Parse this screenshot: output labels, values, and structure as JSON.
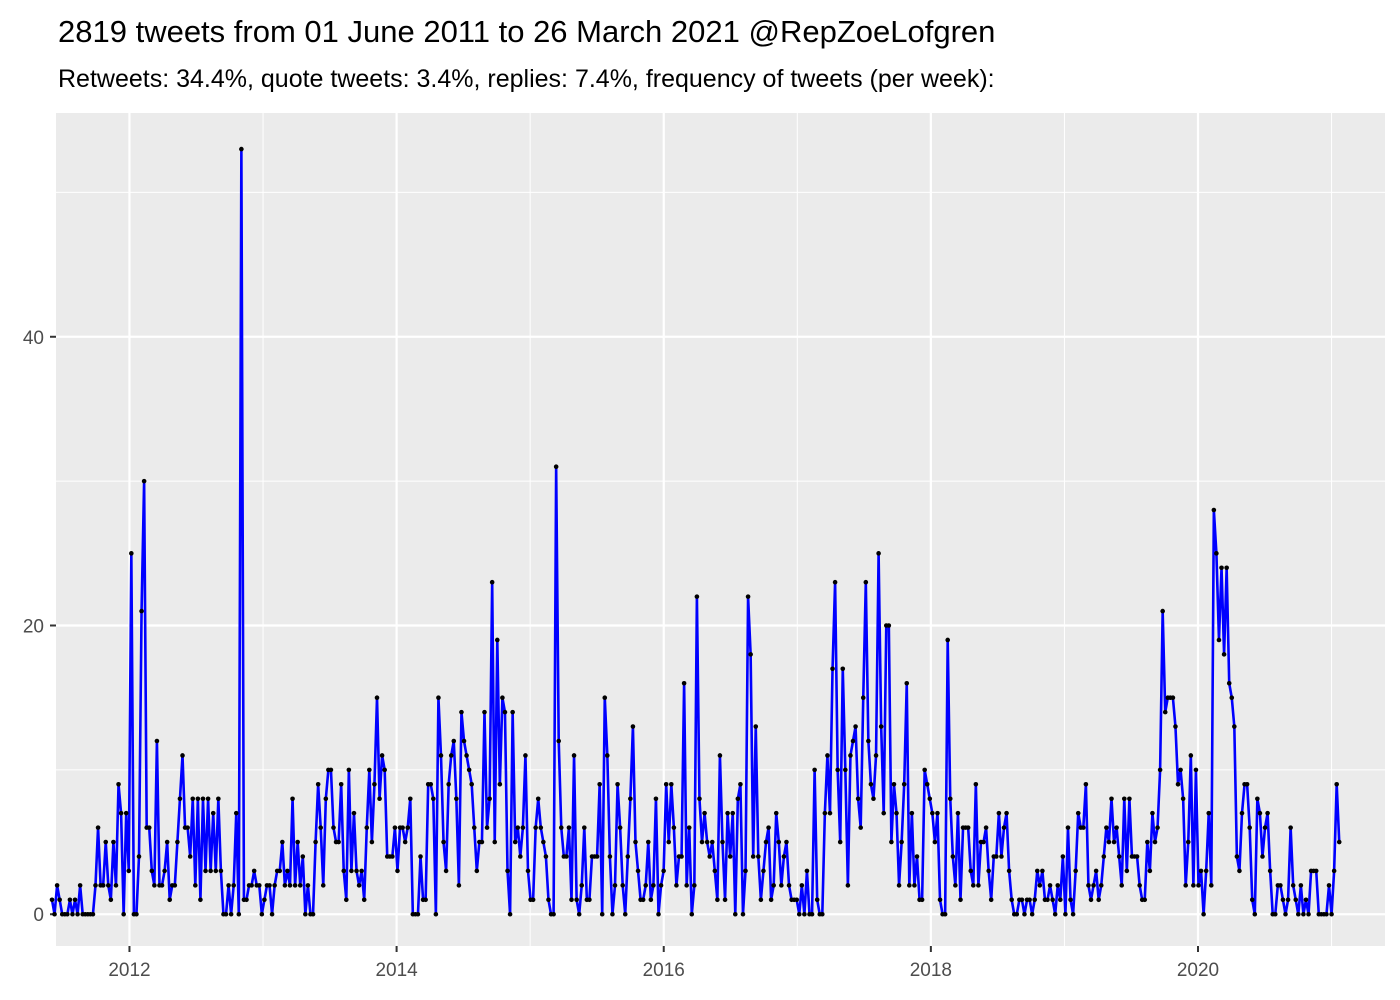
{
  "chart_data": {
    "type": "line",
    "title": "2819 tweets from 01 June 2011 to 26 March 2021 @RepZoeLofgren",
    "subtitle": "Retweets: 34.4%, quote tweets: 3.4%, replies: 7.4%, frequency of tweets (per week):",
    "xlabel": "",
    "ylabel": "",
    "xlim": [
      2011.45,
      2021.4
    ],
    "ylim": [
      -2.2,
      55.5
    ],
    "x_ticks": [
      2012,
      2014,
      2016,
      2018,
      2020
    ],
    "y_ticks": [
      0,
      20,
      40
    ],
    "grid": true,
    "colors": {
      "line": "#0000ff",
      "point": "#000000",
      "panel": "#ebebeb",
      "grid": "#ffffff"
    },
    "series": [
      {
        "x_start": 2011.42,
        "x_step": 0.01916,
        "values": [
          1,
          0,
          2,
          1,
          0,
          0,
          0,
          1,
          0,
          1,
          0,
          2,
          0,
          0,
          0,
          0,
          0,
          2,
          6,
          2,
          2,
          5,
          2,
          1,
          5,
          2,
          9,
          7,
          0,
          7,
          3,
          25,
          0,
          0,
          4,
          21,
          30,
          6,
          6,
          3,
          2,
          12,
          2,
          2,
          3,
          5,
          1,
          2,
          2,
          5,
          8,
          11,
          6,
          6,
          4,
          8,
          2,
          8,
          1,
          8,
          3,
          8,
          3,
          7,
          3,
          8,
          3,
          0,
          0,
          2,
          0,
          2,
          7,
          0,
          53,
          1,
          1,
          2,
          2,
          3,
          2,
          2,
          0,
          1,
          2,
          2,
          0,
          2,
          3,
          3,
          5,
          2,
          3,
          2,
          8,
          2,
          5,
          2,
          4,
          0,
          2,
          0,
          0,
          5,
          9,
          6,
          2,
          8,
          10,
          10,
          6,
          5,
          5,
          9,
          3,
          1,
          10,
          3,
          7,
          3,
          2,
          3,
          1,
          6,
          10,
          5,
          9,
          15,
          8,
          11,
          10,
          4,
          4,
          4,
          6,
          3,
          6,
          6,
          5,
          6,
          8,
          0,
          0,
          0,
          4,
          1,
          1,
          9,
          9,
          8,
          0,
          15,
          11,
          5,
          3,
          9,
          11,
          12,
          8,
          2,
          14,
          12,
          11,
          10,
          9,
          6,
          3,
          5,
          5,
          14,
          6,
          8,
          23,
          5,
          19,
          9,
          15,
          14,
          3,
          0,
          14,
          5,
          6,
          4,
          6,
          11,
          3,
          1,
          1,
          6,
          8,
          6,
          5,
          4,
          1,
          0,
          0,
          31,
          12,
          6,
          4,
          4,
          6,
          1,
          11,
          1,
          0,
          2,
          6,
          1,
          1,
          4,
          4,
          4,
          9,
          0,
          15,
          11,
          4,
          0,
          2,
          9,
          6,
          2,
          0,
          4,
          8,
          13,
          5,
          3,
          1,
          1,
          2,
          5,
          1,
          2,
          8,
          0,
          2,
          3,
          9,
          5,
          9,
          6,
          2,
          4,
          4,
          16,
          2,
          6,
          0,
          2,
          22,
          8,
          5,
          7,
          5,
          4,
          5,
          3,
          1,
          11,
          5,
          1,
          7,
          4,
          7,
          0,
          8,
          9,
          0,
          3,
          22,
          18,
          4,
          13,
          4,
          1,
          3,
          5,
          6,
          1,
          2,
          7,
          5,
          2,
          4,
          5,
          2,
          1,
          1,
          1,
          0,
          2,
          0,
          3,
          0,
          0,
          10,
          1,
          0,
          0,
          7,
          11,
          7,
          17,
          23,
          10,
          5,
          17,
          10,
          2,
          11,
          12,
          13,
          8,
          6,
          15,
          23,
          12,
          9,
          8,
          11,
          25,
          13,
          7,
          20,
          20,
          5,
          9,
          7,
          2,
          5,
          9,
          16,
          2,
          7,
          2,
          4,
          1,
          1,
          10,
          9,
          8,
          7,
          5,
          7,
          1,
          0,
          0,
          19,
          8,
          4,
          2,
          7,
          1,
          6,
          6,
          6,
          3,
          2,
          9,
          2,
          5,
          5,
          6,
          3,
          1,
          4,
          4,
          7,
          4,
          6,
          7,
          3,
          1,
          0,
          0,
          1,
          1,
          0,
          1,
          1,
          0,
          1,
          3,
          2,
          3,
          1,
          1,
          2,
          1,
          0,
          2,
          1,
          4,
          0,
          6,
          1,
          0,
          3,
          7,
          6,
          6,
          9,
          2,
          1,
          2,
          3,
          1,
          2,
          4,
          6,
          5,
          8,
          5,
          6,
          4,
          2,
          8,
          3,
          8,
          4,
          4,
          4,
          2,
          1,
          1,
          5,
          3,
          7,
          5,
          6,
          10,
          21,
          14,
          15,
          15,
          15,
          13,
          9,
          10,
          8,
          2,
          5,
          11,
          2,
          10,
          2,
          3,
          0,
          3,
          7,
          2,
          28,
          25,
          19,
          24,
          18,
          24,
          16,
          15,
          13,
          4,
          3,
          7,
          9,
          9,
          6,
          1,
          0,
          8,
          7,
          4,
          6,
          7,
          3,
          0,
          0,
          2,
          2,
          1,
          0,
          1,
          6,
          2,
          1,
          0,
          2,
          0,
          1,
          0,
          3,
          3,
          3,
          0,
          0,
          0,
          0,
          2,
          0,
          3,
          9,
          5
        ]
      }
    ]
  }
}
